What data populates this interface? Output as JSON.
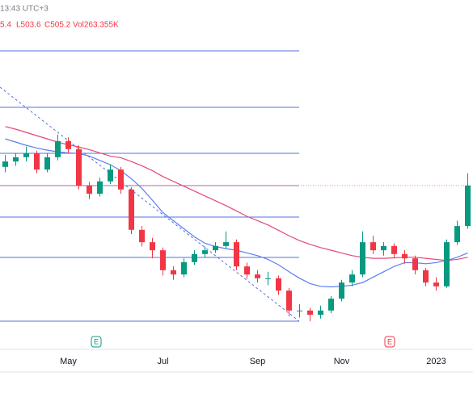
{
  "header": {
    "time": "13:43 UTC+3",
    "open": "5.4",
    "low": "L503.6",
    "close": "C505.2",
    "volume": "Vol263.355K"
  },
  "chart_data": {
    "type": "candlestick",
    "categories": [
      null,
      null,
      null,
      null,
      null,
      null,
      "May",
      null,
      null,
      null,
      null,
      null,
      null,
      null,
      null,
      "Jul",
      null,
      null,
      null,
      null,
      null,
      null,
      null,
      null,
      "Sep",
      null,
      null,
      null,
      null,
      null,
      null,
      null,
      "Nov",
      null,
      null,
      null,
      null,
      null,
      null,
      null,
      null,
      "2023",
      null,
      null,
      null
    ],
    "open": [
      540,
      550,
      558,
      565,
      535,
      558,
      588,
      573,
      505,
      490,
      513,
      535,
      498,
      423,
      400,
      385,
      348,
      340,
      363,
      378,
      385,
      393,
      400,
      355,
      340,
      333,
      333,
      310,
      273,
      273,
      265,
      273,
      295,
      325,
      340,
      400,
      385,
      393,
      378,
      370,
      348,
      325,
      318,
      400,
      430
    ],
    "high": [
      562,
      566,
      578,
      570,
      565,
      600,
      595,
      580,
      512,
      520,
      545,
      540,
      502,
      430,
      408,
      390,
      355,
      370,
      385,
      392,
      400,
      420,
      405,
      362,
      348,
      345,
      338,
      315,
      285,
      278,
      282,
      300,
      330,
      348,
      420,
      412,
      400,
      398,
      385,
      375,
      352,
      335,
      405,
      440,
      528
    ],
    "low": [
      530,
      542,
      550,
      528,
      530,
      552,
      565,
      498,
      480,
      485,
      508,
      490,
      415,
      392,
      370,
      338,
      330,
      335,
      358,
      372,
      380,
      388,
      348,
      332,
      325,
      320,
      302,
      262,
      260,
      253,
      258,
      268,
      290,
      318,
      335,
      378,
      375,
      370,
      360,
      340,
      318,
      310,
      315,
      395,
      425
    ],
    "close": [
      550,
      558,
      565,
      535,
      558,
      588,
      573,
      505,
      490,
      513,
      535,
      498,
      423,
      400,
      385,
      348,
      340,
      363,
      378,
      385,
      393,
      400,
      355,
      340,
      333,
      333,
      310,
      273,
      273,
      265,
      273,
      295,
      325,
      340,
      400,
      385,
      393,
      378,
      370,
      348,
      325,
      318,
      400,
      430,
      505.2
    ],
    "up_color": "#089981",
    "down_color": "#f23645",
    "ylim": [
      235.2,
      790.2
    ],
    "lines": [
      {
        "color": "#5b7ff0",
        "values": [
          592,
          586,
          580,
          575,
          571,
          568,
          566,
          565,
          560,
          552,
          544,
          533,
          518,
          500,
          478,
          455,
          440,
          425,
          410,
          398,
          392,
          388,
          385,
          380,
          375,
          368,
          358,
          345,
          333,
          323,
          318,
          317,
          318,
          320,
          325,
          335,
          345,
          355,
          362,
          362,
          360,
          362,
          366,
          372,
          380
        ]
      },
      {
        "color": "#e5487a",
        "values": [
          615,
          610,
          604,
          598,
          592,
          586,
          581,
          577,
          572,
          566,
          560,
          557,
          550,
          542,
          533,
          522,
          513,
          504,
          495,
          486,
          477,
          468,
          458,
          448,
          440,
          432,
          422,
          412,
          403,
          396,
          390,
          385,
          380,
          375,
          372,
          370,
          370,
          371,
          372,
          372,
          370,
          368,
          366,
          368,
          372
        ]
      }
    ],
    "fib_levels": {
      "colors": [
        "#4f72e3",
        "#4f72e3",
        "#4f72e3",
        "#9c6fd6",
        "#4f72e3",
        "#4f72e3",
        "#4f72e3"
      ],
      "values": [
        755.7,
        650.7,
        565.2,
        505.2,
        446.7,
        371.7,
        253.2
      ]
    },
    "trend_line": {
      "color": "#4f72e3",
      "values": [
        688.2,
        253.2
      ]
    },
    "events": [
      "E",
      "E"
    ]
  }
}
